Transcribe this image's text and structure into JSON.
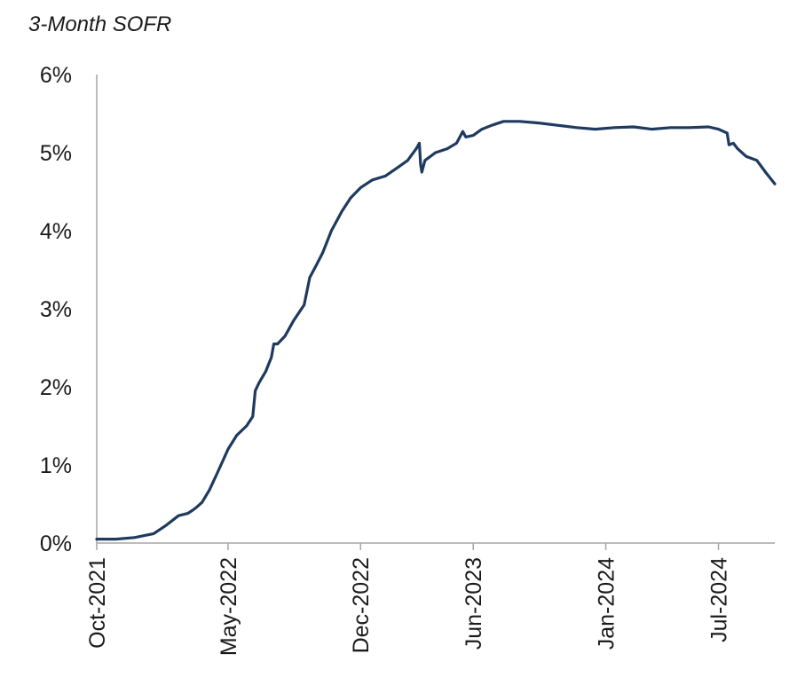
{
  "chart_data": {
    "type": "line",
    "title": "3-Month SOFR",
    "xlabel": "",
    "ylabel": "",
    "ylim": [
      0,
      6
    ],
    "yticks": [
      0,
      1,
      2,
      3,
      4,
      5,
      6
    ],
    "ytick_labels": [
      "0%",
      "1%",
      "2%",
      "3%",
      "4%",
      "5%",
      "6%"
    ],
    "xlim": [
      "2021-10-01",
      "2024-09-30"
    ],
    "xticks": [
      "2021-10-01",
      "2022-05-01",
      "2022-12-01",
      "2023-06-01",
      "2024-01-01",
      "2024-07-01"
    ],
    "xtick_labels": [
      "Oct-2021",
      "May-2022",
      "Dec-2022",
      "Jun-2023",
      "Jan-2024",
      "Jul-2024"
    ],
    "grid": false,
    "legend": "none",
    "series": [
      {
        "color": "#1f3a5f",
        "x": [
          "2021-10-01",
          "2021-11-01",
          "2021-12-01",
          "2022-01-01",
          "2022-01-20",
          "2022-02-10",
          "2022-02-25",
          "2022-03-05",
          "2022-03-10",
          "2022-03-20",
          "2022-04-01",
          "2022-04-15",
          "2022-05-01",
          "2022-05-15",
          "2022-05-31",
          "2022-06-10",
          "2022-06-14",
          "2022-06-20",
          "2022-07-01",
          "2022-07-10",
          "2022-07-14",
          "2022-07-20",
          "2022-08-01",
          "2022-08-15",
          "2022-09-01",
          "2022-09-10",
          "2022-09-20",
          "2022-10-01",
          "2022-10-15",
          "2022-11-01",
          "2022-11-15",
          "2022-12-01",
          "2022-12-20",
          "2023-01-10",
          "2023-02-01",
          "2023-02-15",
          "2023-03-01",
          "2023-03-06",
          "2023-03-08",
          "2023-03-10",
          "2023-03-15",
          "2023-04-01",
          "2023-04-20",
          "2023-05-05",
          "2023-05-15",
          "2023-05-20",
          "2023-06-01",
          "2023-06-15",
          "2023-07-01",
          "2023-07-20",
          "2023-08-15",
          "2023-09-15",
          "2023-10-15",
          "2023-11-15",
          "2023-12-15",
          "2024-01-15",
          "2024-02-15",
          "2024-03-15",
          "2024-04-15",
          "2024-05-15",
          "2024-06-15",
          "2024-07-01",
          "2024-07-15",
          "2024-07-18",
          "2024-07-25",
          "2024-08-01",
          "2024-08-15",
          "2024-09-01",
          "2024-09-15",
          "2024-09-30"
        ],
        "values": [
          0.05,
          0.05,
          0.07,
          0.12,
          0.22,
          0.35,
          0.38,
          0.42,
          0.45,
          0.52,
          0.68,
          0.92,
          1.2,
          1.38,
          1.5,
          1.62,
          1.95,
          2.05,
          2.2,
          2.38,
          2.55,
          2.55,
          2.65,
          2.85,
          3.05,
          3.4,
          3.55,
          3.72,
          4.0,
          4.25,
          4.42,
          4.55,
          4.65,
          4.7,
          4.82,
          4.9,
          5.05,
          5.12,
          4.85,
          4.75,
          4.9,
          5.0,
          5.05,
          5.12,
          5.27,
          5.2,
          5.22,
          5.3,
          5.35,
          5.4,
          5.4,
          5.38,
          5.35,
          5.32,
          5.3,
          5.32,
          5.33,
          5.3,
          5.32,
          5.32,
          5.33,
          5.3,
          5.25,
          5.1,
          5.12,
          5.05,
          4.95,
          4.9,
          4.75,
          4.6
        ]
      }
    ]
  }
}
